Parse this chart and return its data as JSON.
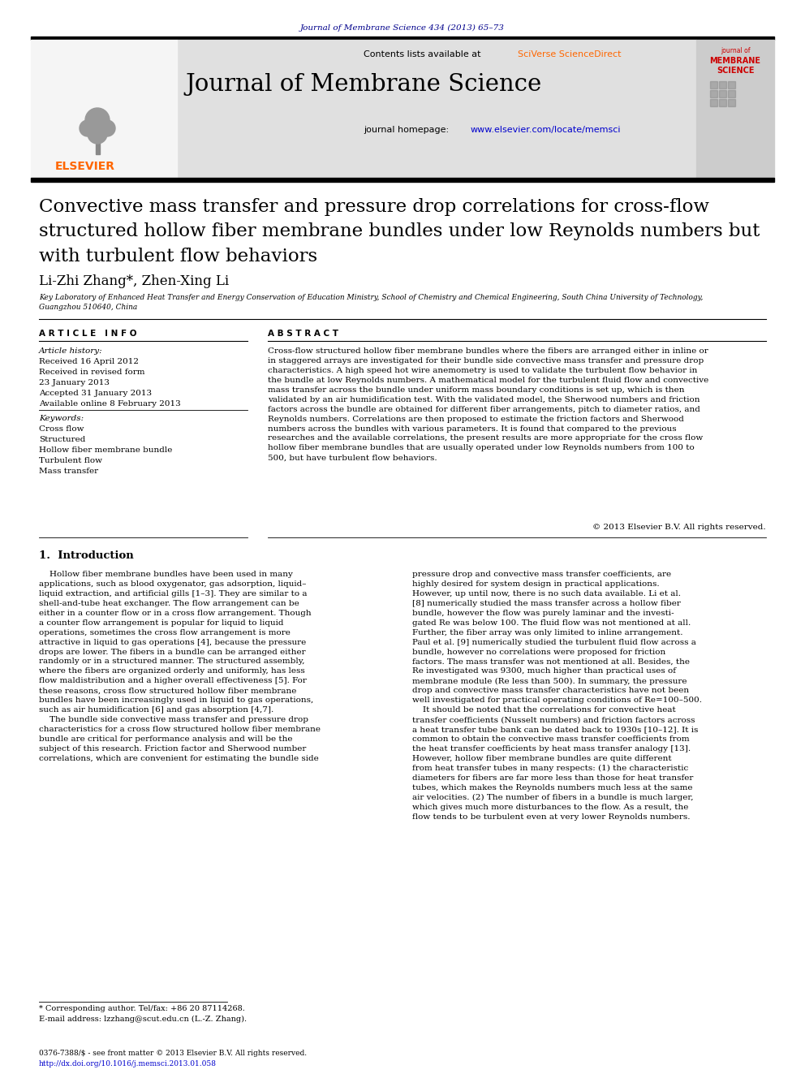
{
  "journal_ref": "Journal of Membrane Science 434 (2013) 65–73",
  "journal_ref_color": "#00008B",
  "contents_line": "Contents lists available at ",
  "sciverse_text": "SciVerse ScienceDirect",
  "sciverse_color": "#FF6600",
  "journal_name": "Journal of Membrane Science",
  "homepage_line": "journal homepage: ",
  "homepage_url": "www.elsevier.com/locate/memsci",
  "homepage_url_color": "#0000CD",
  "header_bg": "#E0E0E0",
  "title": "Convective mass transfer and pressure drop correlations for cross-flow\nstructured hollow fiber membrane bundles under low Reynolds numbers but\nwith turbulent flow behaviors",
  "authors": "Li-Zhi Zhang*, Zhen-Xing Li",
  "affiliation": "Key Laboratory of Enhanced Heat Transfer and Energy Conservation of Education Ministry, School of Chemistry and Chemical Engineering, South China University of Technology,\nGuangzhou 510640, China",
  "article_info_header": "A R T I C L E   I N F O",
  "article_history_label": "Article history:",
  "received_date": "Received 16 April 2012",
  "revised_label": "Received in revised form",
  "revised_date": "23 January 2013",
  "accepted_date": "Accepted 31 January 2013",
  "available_date": "Available online 8 February 2013",
  "keywords_label": "Keywords:",
  "keywords": [
    "Cross flow",
    "Structured",
    "Hollow fiber membrane bundle",
    "Turbulent flow",
    "Mass transfer"
  ],
  "abstract_header": "A B S T R A C T",
  "abstract_text": "Cross-flow structured hollow fiber membrane bundles where the fibers are arranged either in inline or\nin staggered arrays are investigated for their bundle side convective mass transfer and pressure drop\ncharacteristics. A high speed hot wire anemometry is used to validate the turbulent flow behavior in\nthe bundle at low Reynolds numbers. A mathematical model for the turbulent fluid flow and convective\nmass transfer across the bundle under uniform mass boundary conditions is set up, which is then\nvalidated by an air humidification test. With the validated model, the Sherwood numbers and friction\nfactors across the bundle are obtained for different fiber arrangements, pitch to diameter ratios, and\nReynolds numbers. Correlations are then proposed to estimate the friction factors and Sherwood\nnumbers across the bundles with various parameters. It is found that compared to the previous\nresearches and the available correlations, the present results are more appropriate for the cross flow\nhollow fiber membrane bundles that are usually operated under low Reynolds numbers from 100 to\n500, but have turbulent flow behaviors.",
  "copyright_text": "© 2013 Elsevier B.V. All rights reserved.",
  "intro_header": "1.  Introduction",
  "intro_col1": "    Hollow fiber membrane bundles have been used in many\napplications, such as blood oxygenator, gas adsorption, liquid–\nliquid extraction, and artificial gills [1–3]. They are similar to a\nshell-and-tube heat exchanger. The flow arrangement can be\neither in a counter flow or in a cross flow arrangement. Though\na counter flow arrangement is popular for liquid to liquid\noperations, sometimes the cross flow arrangement is more\nattractive in liquid to gas operations [4], because the pressure\ndrops are lower. The fibers in a bundle can be arranged either\nrandomly or in a structured manner. The structured assembly,\nwhere the fibers are organized orderly and uniformly, has less\nflow maldistribution and a higher overall effectiveness [5]. For\nthese reasons, cross flow structured hollow fiber membrane\nbundles have been increasingly used in liquid to gas operations,\nsuch as air humidification [6] and gas absorption [4,7].\n    The bundle side convective mass transfer and pressure drop\ncharacteristics for a cross flow structured hollow fiber membrane\nbundle are critical for performance analysis and will be the\nsubject of this research. Friction factor and Sherwood number\ncorrelations, which are convenient for estimating the bundle side",
  "intro_col2": "pressure drop and convective mass transfer coefficients, are\nhighly desired for system design in practical applications.\nHowever, up until now, there is no such data available. Li et al.\n[8] numerically studied the mass transfer across a hollow fiber\nbundle, however the flow was purely laminar and the investi-\ngated Re was below 100. The fluid flow was not mentioned at all.\nFurther, the fiber array was only limited to inline arrangement.\nPaul et al. [9] numerically studied the turbulent fluid flow across a\nbundle, however no correlations were proposed for friction\nfactors. The mass transfer was not mentioned at all. Besides, the\nRe investigated was 9300, much higher than practical uses of\nmembrane module (Re less than 500). In summary, the pressure\ndrop and convective mass transfer characteristics have not been\nwell investigated for practical operating conditions of Re=100–500.\n    It should be noted that the correlations for convective heat\ntransfer coefficients (Nusselt numbers) and friction factors across\na heat transfer tube bank can be dated back to 1930s [10–12]. It is\ncommon to obtain the convective mass transfer coefficients from\nthe heat transfer coefficients by heat mass transfer analogy [13].\nHowever, hollow fiber membrane bundles are quite different\nfrom heat transfer tubes in many respects: (1) the characteristic\ndiameters for fibers are far more less than those for heat transfer\ntubes, which makes the Reynolds numbers much less at the same\nair velocities. (2) The number of fibers in a bundle is much larger,\nwhich gives much more disturbances to the flow. As a result, the\nflow tends to be turbulent even at very lower Reynolds numbers.",
  "footnote1": "* Corresponding author. Tel/fax: +86 20 87114268.",
  "footnote2": "E-mail address: lzzhang@scut.edu.cn (L.-Z. Zhang).",
  "footer1": "0376-7388/$ - see front matter © 2013 Elsevier B.V. All rights reserved.",
  "footer2": "http://dx.doi.org/10.1016/j.memsci.2013.01.058",
  "bg_color": "#FFFFFF",
  "text_color": "#000000",
  "link_color": "#0000CD",
  "elsevier_color": "#FF6600"
}
